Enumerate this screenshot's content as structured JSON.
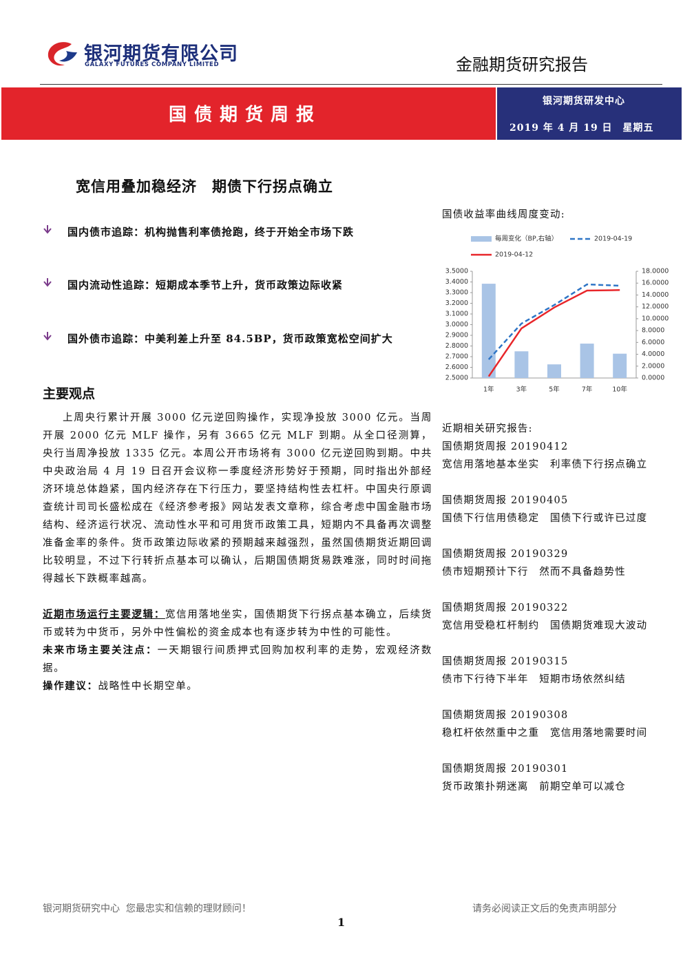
{
  "header": {
    "company_cn": "银河期货有限公司",
    "company_en": "GALAXY FUTURES COMPANY LIMITED",
    "report_type": "金融期货研究报告"
  },
  "banner": {
    "title": "国债期货周报",
    "dept": "银河期货研发中心",
    "date": "2019 年 4 月 19 日　星期五"
  },
  "headline": "宽信用叠加稳经济　期债下行拐点确立",
  "highlights": [
    "国内债市追踪：机构抛售利率债抢跑，终于开始全市场下跌",
    "国内流动性追踪：短期成本季节上升，货币政策边际收紧",
    "国外债市追踪：中美利差上升至 84.5BP，货币政策宽松空间扩大"
  ],
  "section_title": "主要观点",
  "body": {
    "paragraph": "上周央行累计开展 3000 亿元逆回购操作，实现净投放 3000 亿元。当周开展 2000 亿元 MLF 操作，另有 3665 亿元 MLF 到期。从全口径测算，央行当周净投放 1335 亿元。本周公开市场将有 3000 亿元逆回购到期。中共中央政治局 4 月 19 日召开会议称一季度经济形势好于预期，同时指出外部经济环境总体趋紧，国内经济存在下行压力，要坚持结构性去杠杆。中国央行原调查统计司司长盛松成在《经济参考报》网站发表文章称，综合考虑中国金融市场结构、经济运行状况、流动性水平和可用货币政策工具，短期内不具备再次调整准备金率的条件。货币政策边际收紧的预期越来越强烈，虽然国债期货近期回调比较明显，不过下行转折点基本可以确认，后期国债期货易跌难涨，同时时间拖得越长下跌概率越高。",
    "items": [
      {
        "label": "近期市场运行主要逻辑：",
        "text": "宽信用落地坐实，国债期货下行拐点基本确立，后续货币或转为中货币，另外中性偏松的资金成本也有逐步转为中性的可能性。"
      },
      {
        "label": "未来市场主要关注点：",
        "text": "一天期银行间质押式回购加权利率的走势，宏观经济数据。"
      },
      {
        "label": "操作建议：",
        "text": "战略性中长期空单。"
      }
    ]
  },
  "chart_data": {
    "type": "combo",
    "title": "国债收益率曲线周度变动:",
    "categories": [
      "1年",
      "3年",
      "5年",
      "7年",
      "10年"
    ],
    "series": [
      {
        "name": "每周变化（BP,右轴）",
        "type": "bar",
        "axis": "y2",
        "color": "#a9c4e6",
        "values": [
          15.9,
          4.5,
          2.3,
          5.8,
          4.1
        ]
      },
      {
        "name": "2019-04-19",
        "type": "line",
        "dash": true,
        "color": "#2e75c6",
        "values": [
          2.674,
          3.01,
          3.184,
          3.377,
          3.365
        ]
      },
      {
        "name": "2019-04-12",
        "type": "line",
        "color": "#e8262a",
        "values": [
          2.515,
          2.965,
          3.161,
          3.319,
          3.324
        ]
      }
    ],
    "ylim": [
      2.5,
      3.5
    ],
    "yticks": [
      {
        "value": 2.5,
        "label": "2.5000"
      },
      {
        "value": 2.6,
        "label": "2.6000"
      },
      {
        "value": 2.7,
        "label": "2.7000"
      },
      {
        "value": 2.8,
        "label": "2.8000"
      },
      {
        "value": 2.9,
        "label": "2.9000"
      },
      {
        "value": 3.0,
        "label": "3.0000"
      },
      {
        "value": 3.1,
        "label": "3.1000"
      },
      {
        "value": 3.2,
        "label": "3.2000"
      },
      {
        "value": 3.3,
        "label": "3.3000"
      },
      {
        "value": 3.4,
        "label": "3.4000"
      },
      {
        "value": 3.5,
        "label": "3.5000"
      }
    ],
    "y2lim": [
      0,
      18
    ],
    "y2ticks": [
      {
        "value": 0,
        "label": "0.0000"
      },
      {
        "value": 2,
        "label": "2.0000"
      },
      {
        "value": 4,
        "label": "4.0000"
      },
      {
        "value": 6,
        "label": "6.0000"
      },
      {
        "value": 8,
        "label": "8.0000"
      },
      {
        "value": 10,
        "label": "10.0000"
      },
      {
        "value": 12,
        "label": "12.0000"
      },
      {
        "value": 14,
        "label": "14.0000"
      },
      {
        "value": 16,
        "label": "16.0000"
      },
      {
        "value": 18,
        "label": "18.0000"
      }
    ]
  },
  "related": {
    "title": "近期相关研究报告:",
    "reports": [
      {
        "issue": "国债期货周报 20190412",
        "title": "宽信用落地基本坐实　利率债下行拐点确立"
      },
      {
        "issue": "国债期货周报 20190405",
        "title": "国债下行信用债稳定　国债下行或许已过度"
      },
      {
        "issue": "国债期货周报 20190329",
        "title": "债市短期预计下行　然而不具备趋势性"
      },
      {
        "issue": "国债期货周报 20190322",
        "title": "宽信用受稳杠杆制约　国债期货难现大波动"
      },
      {
        "issue": "国债期货周报 20190315",
        "title": "债市下行待下半年　短期市场依然纠结"
      },
      {
        "issue": "国债期货周报 20190308",
        "title": "稳杠杆依然重中之重　宽信用落地需要时间"
      },
      {
        "issue": "国债期货周报 20190301",
        "title": "货币政策扑朔迷离　前期空单可以减仓"
      }
    ]
  },
  "footer": {
    "left": "银河期货研究中心  您最忠实和信赖的理财顾问！",
    "right": "请务必阅读正文后的免责声明部分",
    "page": "1"
  }
}
